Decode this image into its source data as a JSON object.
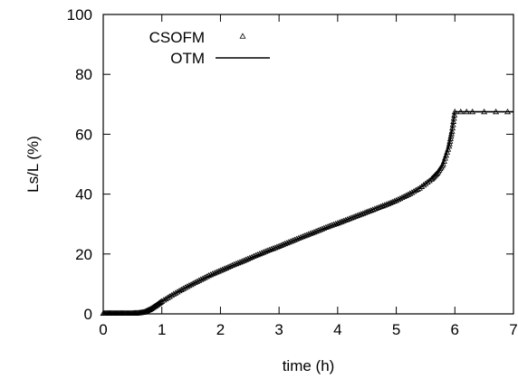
{
  "chart_data": {
    "type": "line",
    "xlabel": "time (h)",
    "ylabel": "Ls/L (%)",
    "xlim": [
      0,
      7
    ],
    "ylim": [
      0,
      100
    ],
    "x_ticks": [
      "0",
      "1",
      "2",
      "3",
      "4",
      "5",
      "6",
      "7"
    ],
    "y_ticks": [
      "0",
      "20",
      "40",
      "60",
      "80",
      "100"
    ],
    "grid": false,
    "legend_position": "top-left",
    "series": [
      {
        "name": "CSOFM",
        "style": "triangle-markers",
        "color": "#000000",
        "x": [
          0.0,
          0.1,
          0.2,
          0.3,
          0.4,
          0.5,
          0.6,
          0.7,
          0.8,
          0.9,
          1.0,
          1.2,
          1.4,
          1.6,
          1.8,
          2.0,
          2.2,
          2.4,
          2.6,
          2.8,
          3.0,
          3.2,
          3.4,
          3.6,
          3.8,
          4.0,
          4.2,
          4.4,
          4.6,
          4.8,
          5.0,
          5.2,
          5.4,
          5.6,
          5.7,
          5.8,
          5.9,
          5.95,
          6.0,
          6.1,
          6.2,
          6.3,
          6.5,
          6.7,
          6.9
        ],
        "y": [
          0.2,
          0.2,
          0.2,
          0.2,
          0.2,
          0.2,
          0.3,
          0.6,
          1.5,
          2.8,
          4.2,
          6.6,
          8.8,
          10.8,
          12.8,
          14.5,
          16.2,
          17.8,
          19.5,
          21.1,
          22.6,
          24.2,
          25.8,
          27.3,
          28.9,
          30.3,
          31.8,
          33.3,
          34.8,
          36.3,
          37.9,
          39.8,
          42.0,
          45.0,
          47.0,
          50.0,
          56.0,
          61.0,
          67.5,
          67.5,
          67.5,
          67.5,
          67.5,
          67.5,
          67.5
        ]
      },
      {
        "name": "OTM",
        "style": "solid-line",
        "color": "#000000",
        "x": [
          0.0,
          0.6,
          0.7,
          0.8,
          0.9,
          1.0,
          1.2,
          1.5,
          2.0,
          2.5,
          3.0,
          3.5,
          4.0,
          4.5,
          5.0,
          5.3,
          5.5,
          5.7,
          5.8,
          5.9,
          5.95,
          6.0,
          7.0
        ],
        "y": [
          0.2,
          0.3,
          0.6,
          1.5,
          2.8,
          4.2,
          6.6,
          9.8,
          14.5,
          18.6,
          22.6,
          26.5,
          30.3,
          34.1,
          37.9,
          40.8,
          43.3,
          47.0,
          50.0,
          56.0,
          61.0,
          67.5,
          67.5
        ]
      }
    ]
  }
}
